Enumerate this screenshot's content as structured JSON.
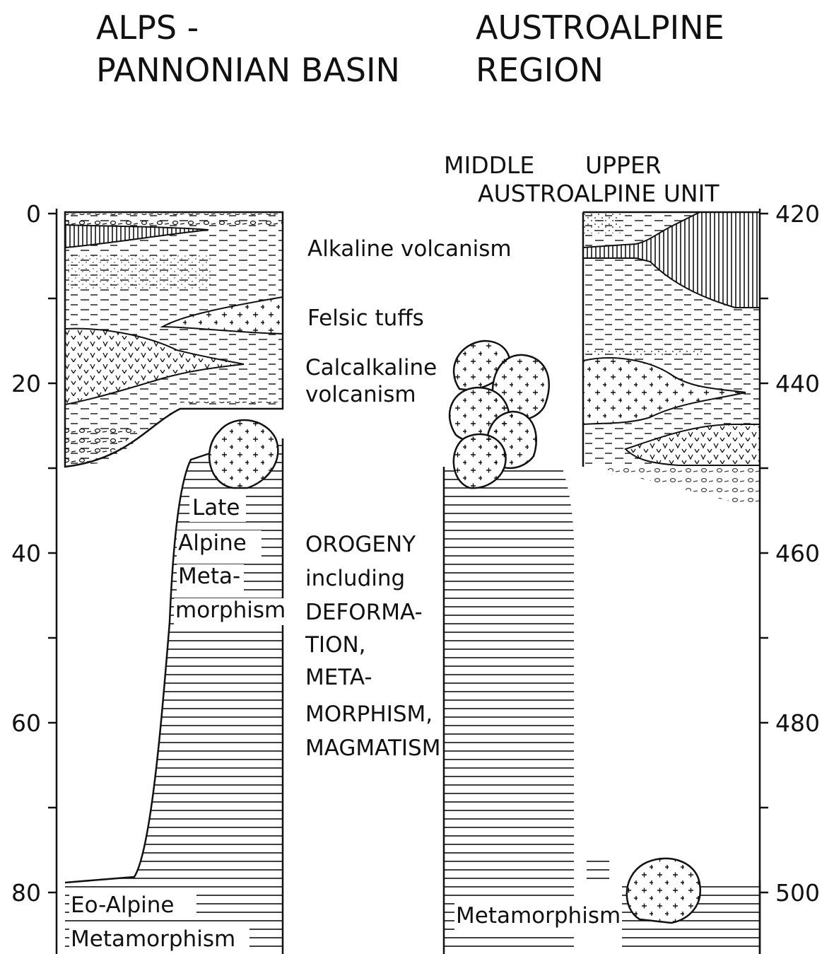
{
  "header": {
    "left_title": [
      "ALPS -",
      "PANNONIAN BASIN"
    ],
    "right_title": [
      "AUSTROALPINE",
      "REGION"
    ]
  },
  "column_headers": {
    "middle": "MIDDLE",
    "upper": "UPPER",
    "unit": "AUSTROALPINE UNIT"
  },
  "axes": {
    "left": {
      "ticks": [
        0,
        20,
        40,
        60,
        80
      ]
    },
    "right": {
      "ticks": [
        420,
        440,
        460,
        480,
        500
      ]
    }
  },
  "labels": {
    "alkaline": "Alkaline volcanism",
    "felsic": "Felsic tuffs",
    "calcalkaline": [
      "Calcalkaline",
      "volcanism"
    ],
    "late_alpine": [
      "Late",
      "Alpine",
      "Meta-",
      "morphism"
    ],
    "orogeny": [
      "OROGENY",
      "including",
      "DEFORMA-",
      "TION,",
      "META-",
      "MORPHISM,",
      "MAGMATISM"
    ],
    "eo_alpine": [
      "Eo-Alpine",
      "Metamorphism"
    ],
    "middle_metamorphism": "Metamorphism"
  }
}
